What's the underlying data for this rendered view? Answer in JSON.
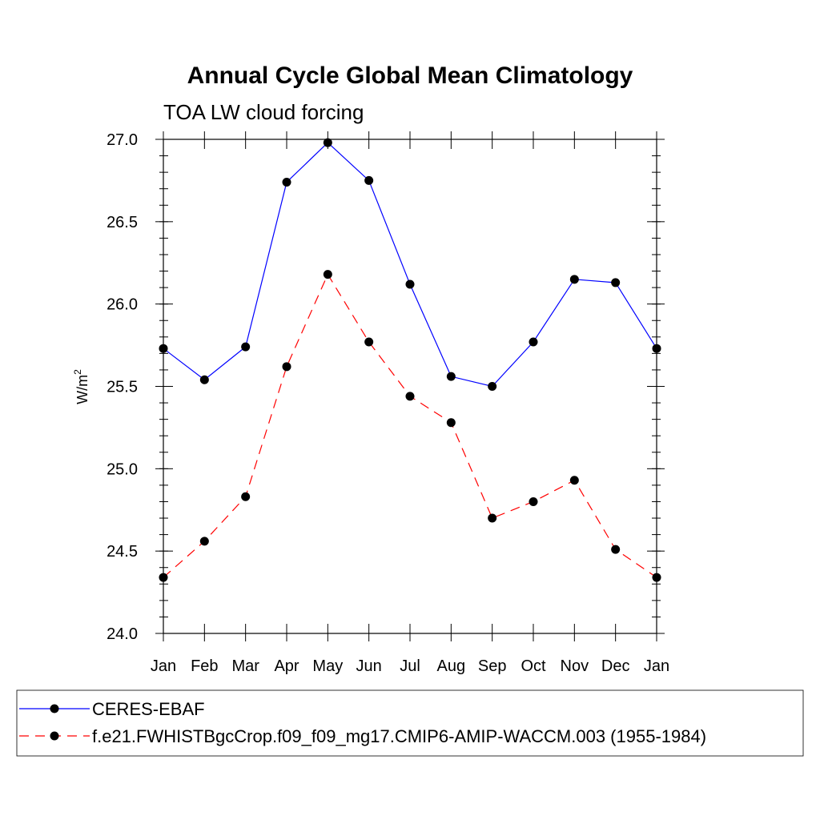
{
  "chart_data": {
    "type": "line",
    "title": "Annual Cycle Global Mean Climatology",
    "subtitle": "TOA LW cloud forcing",
    "xlabel": "",
    "ylabel": "W/m",
    "ylabel_sup": "2",
    "categories": [
      "Jan",
      "Feb",
      "Mar",
      "Apr",
      "May",
      "Jun",
      "Jul",
      "Aug",
      "Sep",
      "Oct",
      "Nov",
      "Dec",
      "Jan"
    ],
    "ylim": [
      24.0,
      27.0
    ],
    "yticks": [
      "24.0",
      "24.5",
      "25.0",
      "25.5",
      "26.0",
      "26.5",
      "27.0"
    ],
    "grid": false,
    "legend_position": "bottom",
    "series": [
      {
        "name": "CERES-EBAF",
        "color": "#0000ff",
        "dash": "solid",
        "values": [
          25.73,
          25.54,
          25.74,
          26.74,
          26.98,
          26.75,
          26.12,
          25.56,
          25.5,
          25.77,
          26.15,
          26.13,
          25.73
        ]
      },
      {
        "name": "f.e21.FWHISTBgcCrop.f09_f09_mg17.CMIP6-AMIP-WACCM.003 (1955-1984)",
        "color": "#ff0000",
        "dash": "dashed",
        "values": [
          24.34,
          24.56,
          24.83,
          25.62,
          26.18,
          25.77,
          25.44,
          25.28,
          24.7,
          24.8,
          24.93,
          24.51,
          24.34
        ]
      }
    ]
  }
}
